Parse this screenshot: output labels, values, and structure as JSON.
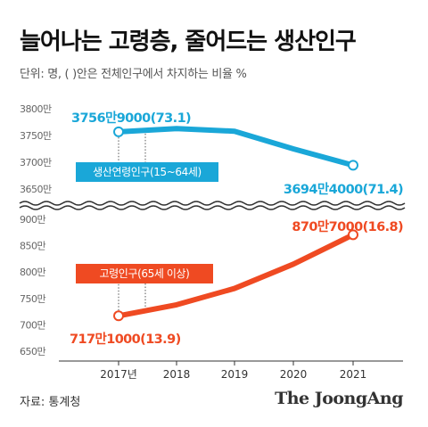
{
  "header": {
    "title": "늘어나는 고령층, 줄어드는 생산인구",
    "subtitle": "단위: 명, ( )안은 전체인구에서 차지하는 비율 %"
  },
  "footer": {
    "source": "자료: 통계청",
    "brand": "The JoongAng"
  },
  "colors": {
    "working_age": "#1aa7d8",
    "elderly": "#ef4a22",
    "axis": "#333333",
    "grid": "#dddddd"
  },
  "chart_data": [
    {
      "type": "line",
      "x": [
        "2017년",
        "2018",
        "2019",
        "2020",
        "2021"
      ],
      "series": [
        {
          "name": "생산연령인구(15~64세)",
          "values": [
            37569000,
            37630000,
            37580000,
            37250000,
            36944000
          ]
        }
      ],
      "yticks": [
        "3800만",
        "3750만",
        "3700만",
        "3650만"
      ],
      "ylim": [
        36500000,
        38000000
      ],
      "annotations": [
        {
          "x": "2017년",
          "text": "3756만9000(73.1)"
        },
        {
          "x": "2021",
          "text": "3694만4000(71.4)"
        }
      ],
      "grid": false
    },
    {
      "type": "line",
      "x": [
        "2017년",
        "2018",
        "2019",
        "2020",
        "2021"
      ],
      "series": [
        {
          "name": "고령인구(65세 이상)",
          "values": [
            7171000,
            7380000,
            7690000,
            8150000,
            8707000
          ]
        }
      ],
      "yticks": [
        "900만",
        "850만",
        "800만",
        "750만",
        "700만",
        "650만"
      ],
      "ylim": [
        6500000,
        9000000
      ],
      "annotations": [
        {
          "x": "2017년",
          "text": "717만1000(13.9)"
        },
        {
          "x": "2021",
          "text": "870만7000(16.8)"
        }
      ],
      "grid": false
    }
  ]
}
